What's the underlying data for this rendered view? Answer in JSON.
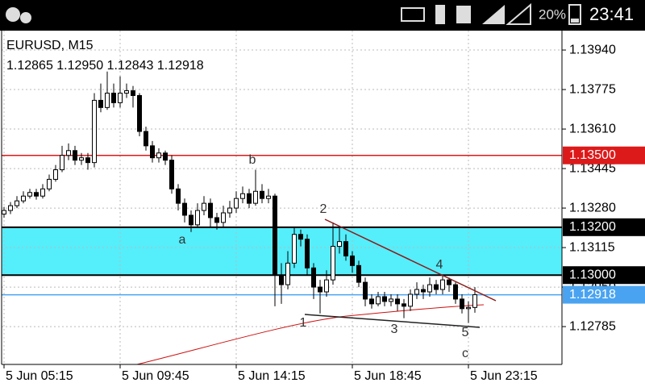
{
  "status_bar": {
    "battery": "20%",
    "time": "23:41"
  },
  "chart_data": {
    "type": "candlestick",
    "title": "EURUSD, M15",
    "subtitle": "1.12865 1.12950 1.12843 1.12918",
    "open": [
      1.13255,
      1.1327,
      1.1329,
      1.1331,
      1.1333,
      1.13345,
      1.1333,
      1.1336,
      1.134,
      1.1344,
      1.135,
      1.1352,
      1.1348,
      1.1349,
      1.1347,
      1.1373,
      1.137,
      1.1376,
      1.1372,
      1.1376,
      1.1377,
      1.1375,
      1.136,
      1.1354,
      1.1349,
      1.1351,
      1.1348,
      1.1336,
      1.133,
      1.1325,
      1.1321,
      1.1327,
      1.133,
      1.1324,
      1.1322,
      1.1326,
      1.1328,
      1.1332,
      1.1334,
      1.133,
      1.1335,
      1.1332,
      1.1333,
      1.13,
      1.1296,
      1.1305,
      1.1317,
      1.1315,
      1.1303,
      1.1295,
      1.1293,
      1.1298,
      1.1312,
      1.1314,
      1.1308,
      1.1304,
      1.1297,
      1.129,
      1.1288,
      1.1291,
      1.1289,
      1.129,
      1.1288,
      1.1287,
      1.1292,
      1.1294,
      1.1293,
      1.1296,
      1.1294,
      1.1298,
      1.1296,
      1.129,
      1.1286,
      1.12865
    ],
    "high": [
      1.13285,
      1.13305,
      1.1333,
      1.1335,
      1.1336,
      1.1336,
      1.1338,
      1.1342,
      1.1346,
      1.1354,
      1.1355,
      1.1354,
      1.1351,
      1.1351,
      1.1376,
      1.138,
      1.1385,
      1.138,
      1.1383,
      1.138,
      1.1379,
      1.1376,
      1.1362,
      1.1356,
      1.1353,
      1.1352,
      1.135,
      1.1338,
      1.1332,
      1.1327,
      1.133,
      1.1333,
      1.1332,
      1.1326,
      1.1329,
      1.1331,
      1.1335,
      1.1337,
      1.1336,
      1.1344,
      1.1338,
      1.1336,
      1.1334,
      1.1305,
      1.131,
      1.132,
      1.1319,
      1.1317,
      1.1305,
      1.1298,
      1.1302,
      1.1322,
      1.132,
      1.1317,
      1.131,
      1.1306,
      1.1299,
      1.1292,
      1.1293,
      1.1293,
      1.1292,
      1.1292,
      1.129,
      1.1294,
      1.1297,
      1.1296,
      1.1299,
      1.1298,
      1.13,
      1.1299,
      1.1297,
      1.1292,
      1.1289,
      1.1295
    ],
    "low": [
      1.1324,
      1.13255,
      1.1328,
      1.133,
      1.1332,
      1.13315,
      1.1332,
      1.1335,
      1.1339,
      1.1343,
      1.1348,
      1.1346,
      1.1346,
      1.1344,
      1.1345,
      1.1368,
      1.1369,
      1.137,
      1.137,
      1.1374,
      1.137,
      1.1358,
      1.1352,
      1.1347,
      1.1347,
      1.1346,
      1.1334,
      1.1327,
      1.1322,
      1.1318,
      1.132,
      1.1325,
      1.132,
      1.1319,
      1.132,
      1.1324,
      1.1326,
      1.133,
      1.1328,
      1.1329,
      1.133,
      1.133,
      1.1287,
      1.1288,
      1.1294,
      1.1303,
      1.1312,
      1.13,
      1.129,
      1.1284,
      1.1291,
      1.1296,
      1.1309,
      1.1306,
      1.1301,
      1.1295,
      1.1287,
      1.1286,
      1.1287,
      1.1287,
      1.1287,
      1.1285,
      1.1282,
      1.1285,
      1.129,
      1.129,
      1.1291,
      1.1292,
      1.1292,
      1.1293,
      1.1288,
      1.1284,
      1.128,
      1.12843
    ],
    "close": [
      1.1327,
      1.1329,
      1.1331,
      1.1333,
      1.13345,
      1.1333,
      1.1336,
      1.134,
      1.1344,
      1.135,
      1.1352,
      1.1348,
      1.1349,
      1.1347,
      1.1373,
      1.137,
      1.1376,
      1.1372,
      1.1376,
      1.1377,
      1.1375,
      1.136,
      1.1354,
      1.1349,
      1.1351,
      1.1348,
      1.1336,
      1.133,
      1.1325,
      1.1321,
      1.1327,
      1.133,
      1.1324,
      1.1322,
      1.1326,
      1.1328,
      1.1332,
      1.1334,
      1.133,
      1.1335,
      1.1332,
      1.1333,
      1.13,
      1.1296,
      1.1305,
      1.1317,
      1.1315,
      1.1303,
      1.1295,
      1.1293,
      1.1298,
      1.1312,
      1.1314,
      1.1308,
      1.1304,
      1.1297,
      1.129,
      1.1288,
      1.1291,
      1.1289,
      1.129,
      1.1288,
      1.1287,
      1.1292,
      1.1294,
      1.1293,
      1.1296,
      1.1294,
      1.1298,
      1.1296,
      1.129,
      1.1286,
      1.12865,
      1.12918
    ],
    "xlim": [
      -0.625,
      86.5
    ],
    "xticks": [
      {
        "value": 0,
        "label": "5 Jun 05:15"
      },
      {
        "value": 18,
        "label": "5 Jun 09:45"
      },
      {
        "value": 36,
        "label": "5 Jun 14:15"
      },
      {
        "value": 54,
        "label": "5 Jun 18:45"
      },
      {
        "value": 72,
        "label": "5 Jun 23:15"
      }
    ],
    "ylim": [
      1.12627,
      1.14021
    ],
    "yticks": [
      {
        "value": 1.1394,
        "label": "1.13940"
      },
      {
        "value": 1.13775,
        "label": "1.13775"
      },
      {
        "value": 1.1361,
        "label": "1.13610"
      },
      {
        "value": 1.13445,
        "label": "1.13445"
      },
      {
        "value": 1.1328,
        "label": "1.13280"
      },
      {
        "value": 1.13115,
        "label": "1.13115"
      },
      {
        "value": 1.1295,
        "label": "1.12950"
      },
      {
        "value": 1.12785,
        "label": "1.12785"
      }
    ],
    "grid": true,
    "bull_color": "#ffffff",
    "bear_color": "#000000",
    "zone": {
      "from": 1.13,
      "to": 1.132,
      "color": "#55eefb"
    },
    "levels": [
      {
        "value": 1.135,
        "label": "1.13500",
        "color": "#dd1a1a"
      },
      {
        "value": 1.132,
        "label": "1.13200",
        "color": "#000000"
      },
      {
        "value": 1.13,
        "label": "1.13000",
        "color": "#000000"
      },
      {
        "value": 1.12918,
        "label": "1.12918",
        "color": "#4aa3f0"
      }
    ],
    "annotations": [
      "a",
      "b",
      "1",
      "2",
      "3",
      "4",
      "5",
      "c"
    ]
  }
}
